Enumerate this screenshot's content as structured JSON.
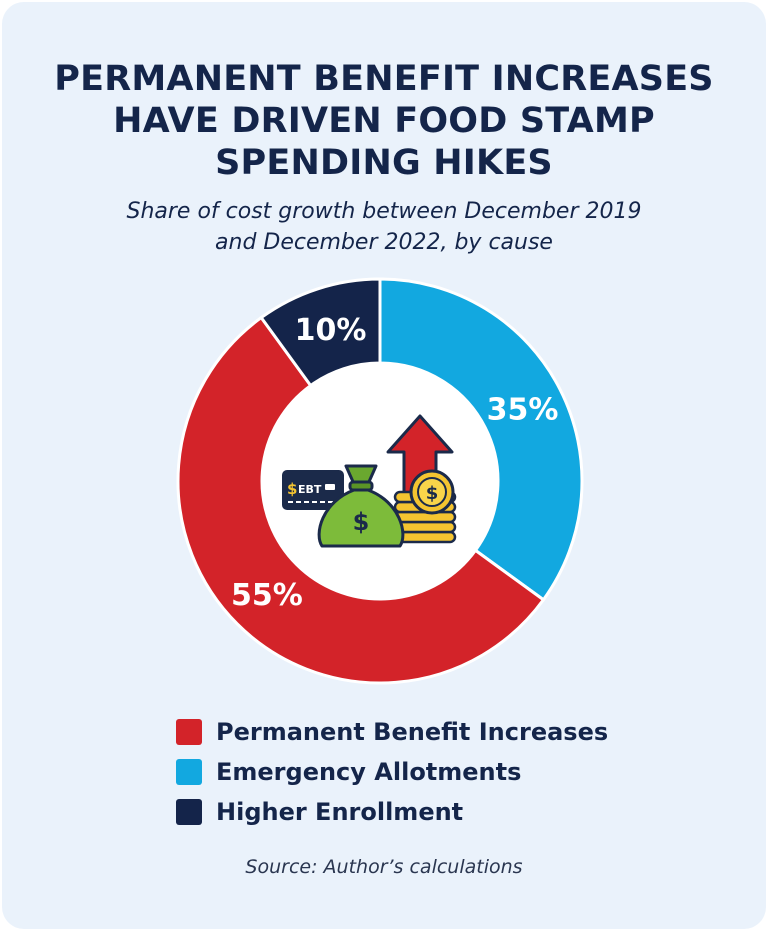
{
  "chart_data": {
    "type": "pie",
    "donut": true,
    "title_lines": [
      "PERMANENT BENEFIT INCREASES",
      "HAVE DRIVEN FOOD STAMP",
      "SPENDING HIKES"
    ],
    "subtitle_lines": [
      "Share of cost growth between December 2019",
      "and December 2022, by cause"
    ],
    "slices": [
      {
        "name": "Emergency Allotments",
        "value": 35,
        "label": "35%",
        "color": "#12a8e0"
      },
      {
        "name": "Permanent Benefit Increases",
        "value": 55,
        "label": "55%",
        "color": "#d32329"
      },
      {
        "name": "Higher Enrollment",
        "value": 10,
        "label": "10%",
        "color": "#14244a"
      }
    ],
    "legend": {
      "placement": "bottom",
      "items": [
        {
          "label": "Permanent Benefit Increases",
          "color": "#d32329"
        },
        {
          "label": "Emergency Allotments",
          "color": "#12a8e0"
        },
        {
          "label": "Higher Enrollment",
          "color": "#14244a"
        }
      ]
    },
    "center_icons": [
      "ebt-card-icon",
      "money-bag-icon",
      "up-arrow-icon",
      "coin-stack-icon"
    ],
    "ebt_card_text": "EBT",
    "source": "Source: Author’s calculations"
  }
}
